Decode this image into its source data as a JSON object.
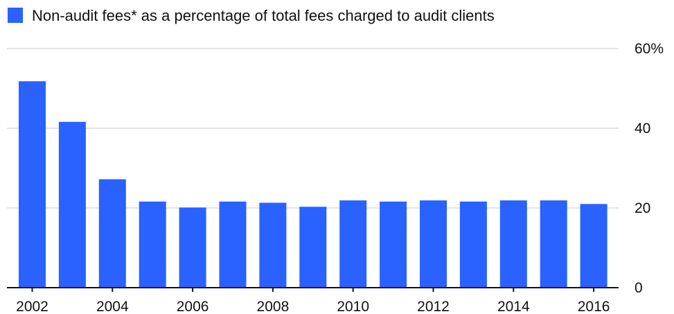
{
  "chart_data": {
    "type": "bar",
    "title": "",
    "xlabel": "",
    "ylabel": "",
    "categories": [
      "2002",
      "2003",
      "2004",
      "2005",
      "2006",
      "2007",
      "2008",
      "2009",
      "2010",
      "2011",
      "2012",
      "2013",
      "2014",
      "2015",
      "2016"
    ],
    "series": [
      {
        "name": "Non-audit fees* as a percentage of total fees charged to audit clients",
        "color": "#2962ff",
        "values": [
          51.8,
          41.6,
          27.2,
          21.6,
          20.1,
          21.6,
          21.3,
          20.3,
          21.9,
          21.6,
          21.9,
          21.6,
          21.9,
          21.9,
          21.0
        ]
      }
    ],
    "ylim": [
      0,
      60
    ],
    "y_ticks": [
      {
        "value": 0,
        "label": "0"
      },
      {
        "value": 20,
        "label": "20"
      },
      {
        "value": 40,
        "label": "40"
      },
      {
        "value": 60,
        "label": "60%"
      }
    ],
    "x_tick_labels": [
      "2002",
      "2004",
      "2006",
      "2008",
      "2010",
      "2012",
      "2014",
      "2016"
    ],
    "grid": true,
    "legend_position": "top-left",
    "y_axis_side": "right"
  }
}
